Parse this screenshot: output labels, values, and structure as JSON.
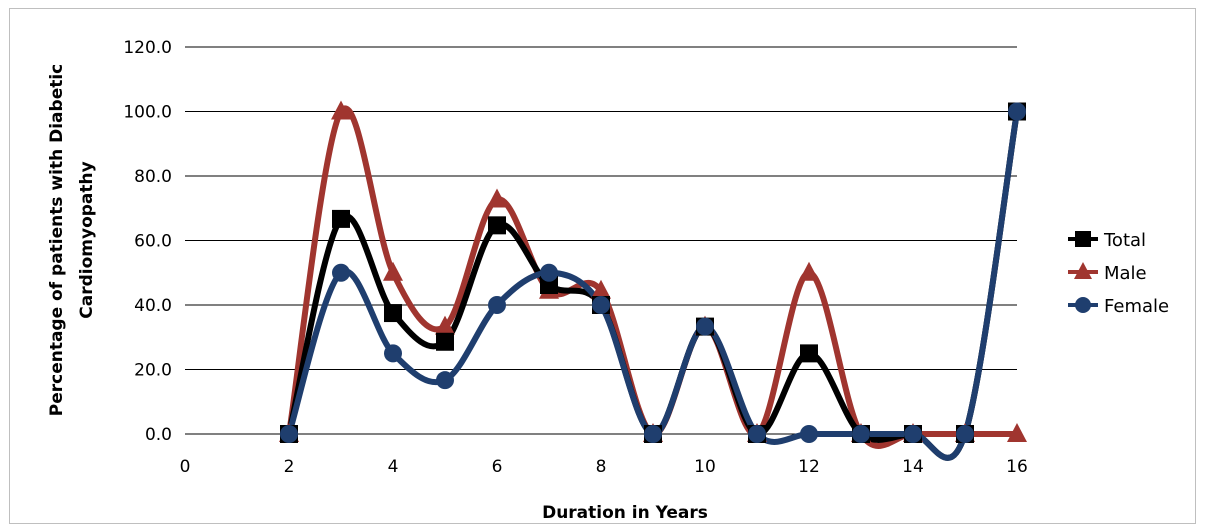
{
  "chart_data": {
    "type": "scatter",
    "xlabel": "Duration in Years",
    "ylabel_lines": [
      "Percentage of patients with Diabetic",
      "Cardiomyopathy"
    ],
    "xlim": [
      0,
      16
    ],
    "ylim": [
      0,
      120
    ],
    "x_ticks": [
      0,
      2,
      4,
      6,
      8,
      10,
      12,
      14,
      16
    ],
    "y_ticks": [
      "0.0",
      "20.0",
      "40.0",
      "60.0",
      "80.0",
      "100.0",
      "120.0"
    ],
    "y_tick_values": [
      0,
      20,
      40,
      60,
      80,
      100,
      120
    ],
    "grid": "horizontal",
    "legend_position": "right",
    "smooth": true,
    "series": [
      {
        "name": "Male",
        "color": "#a0352f",
        "marker": "triangle",
        "points": [
          [
            2,
            0
          ],
          [
            3,
            100
          ],
          [
            4,
            50
          ],
          [
            5,
            33.3
          ],
          [
            6,
            72.7
          ],
          [
            7,
            44.4
          ],
          [
            8,
            44.4
          ],
          [
            9,
            0
          ],
          [
            10,
            33.3
          ],
          [
            11,
            0
          ],
          [
            12,
            50
          ],
          [
            13,
            0
          ],
          [
            14,
            0
          ],
          [
            15,
            0
          ],
          [
            16,
            0
          ]
        ]
      },
      {
        "name": "Total",
        "color": "#000000",
        "marker": "square",
        "points": [
          [
            2,
            0
          ],
          [
            3,
            66.7
          ],
          [
            4,
            37.5
          ],
          [
            5,
            28.6
          ],
          [
            6,
            64.7
          ],
          [
            7,
            46.2
          ],
          [
            8,
            40
          ],
          [
            9,
            0
          ],
          [
            10,
            33.3
          ],
          [
            11,
            0
          ],
          [
            12,
            25
          ],
          [
            13,
            0
          ],
          [
            14,
            0
          ],
          [
            15,
            0
          ],
          [
            16,
            100
          ]
        ]
      },
      {
        "name": "Female",
        "color": "#1f3e6e",
        "marker": "circle",
        "points": [
          [
            2,
            0
          ],
          [
            3,
            50
          ],
          [
            4,
            25
          ],
          [
            5,
            16.7
          ],
          [
            6,
            40
          ],
          [
            7,
            50
          ],
          [
            8,
            40
          ],
          [
            9,
            0
          ],
          [
            10,
            33.3
          ],
          [
            11,
            0
          ],
          [
            12,
            0
          ],
          [
            13,
            0
          ],
          [
            14,
            0
          ],
          [
            15,
            0
          ],
          [
            16,
            100
          ]
        ]
      }
    ],
    "legend": [
      "Total",
      "Male",
      "Female"
    ]
  }
}
